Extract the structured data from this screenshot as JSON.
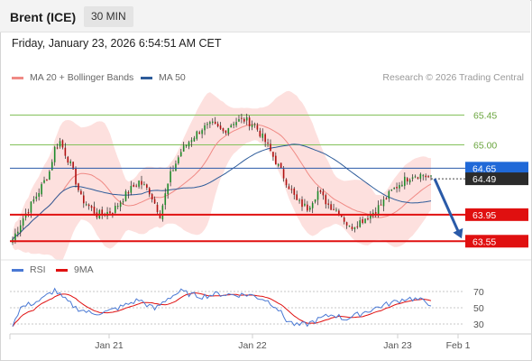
{
  "header": {
    "instrument": "Brent (ICE)",
    "timeframe": "30 MIN"
  },
  "timestamp": "Friday, January 23, 2026 6:54:51 AM CET",
  "legend": {
    "items": [
      {
        "label": "MA 20 + Bollinger Bands",
        "color": "#f08a85"
      },
      {
        "label": "MA 50",
        "color": "#2e5c9a"
      }
    ],
    "credit": "Research © 2026 Trading Central"
  },
  "indicator_legend": {
    "items": [
      {
        "label": "RSI",
        "color": "#4a79d4"
      },
      {
        "label": "9MA",
        "color": "#e01010"
      }
    ]
  },
  "colors": {
    "resistance": "#84c15a",
    "support": "#e01010",
    "current_line": "#2a5aa8",
    "current_badge": "#2069d8",
    "last_badge": "#2b2b2b",
    "band_fill": "#fde0de",
    "arrow": "#2a5aa8",
    "candle": "#1f8a2a",
    "candle_down": "#b01010"
  },
  "chart_data": [
    {
      "type": "candlestick",
      "title": "Brent (ICE) 30 MIN",
      "x_ticks": [
        "Jan 21",
        "Jan 22",
        "Jan 23",
        "Feb 1"
      ],
      "ylim": [
        63.35,
        65.85
      ],
      "price_labels": [
        "65.45",
        "65.00",
        "64.65",
        "64.49",
        "63.95",
        "63.55"
      ],
      "resistance_levels": [
        65.45,
        65.0
      ],
      "support_levels": [
        63.95,
        63.55
      ],
      "current_price": 64.65,
      "last_price": 64.49,
      "forecast_target": 63.55,
      "series": [
        {
          "name": "MA 20 + Bollinger Bands"
        },
        {
          "name": "MA 50"
        }
      ],
      "anchors": [
        [
          0,
          63.58
        ],
        [
          4,
          63.9
        ],
        [
          10,
          64.3
        ],
        [
          14,
          64.6
        ],
        [
          16,
          64.95
        ],
        [
          18,
          65.05
        ],
        [
          22,
          64.7
        ],
        [
          26,
          64.2
        ],
        [
          32,
          63.95
        ],
        [
          38,
          64.0
        ],
        [
          44,
          64.3
        ],
        [
          48,
          64.45
        ],
        [
          52,
          64.3
        ],
        [
          56,
          63.95
        ],
        [
          60,
          64.55
        ],
        [
          64,
          64.9
        ],
        [
          68,
          65.1
        ],
        [
          72,
          65.25
        ],
        [
          76,
          65.3
        ],
        [
          80,
          65.2
        ],
        [
          84,
          65.35
        ],
        [
          88,
          65.38
        ],
        [
          92,
          65.3
        ],
        [
          96,
          65.05
        ],
        [
          100,
          64.75
        ],
        [
          104,
          64.45
        ],
        [
          108,
          64.15
        ],
        [
          112,
          64.05
        ],
        [
          116,
          64.3
        ],
        [
          120,
          64.1
        ],
        [
          124,
          64.0
        ],
        [
          128,
          63.75
        ],
        [
          132,
          63.85
        ],
        [
          136,
          63.95
        ],
        [
          140,
          64.1
        ],
        [
          144,
          64.3
        ],
        [
          148,
          64.45
        ],
        [
          152,
          64.55
        ],
        [
          156,
          64.55
        ],
        [
          159,
          64.49
        ]
      ]
    },
    {
      "type": "line",
      "title": "RSI",
      "ylim": [
        20,
        80
      ],
      "y_ticks": [
        "70",
        "50",
        "30"
      ],
      "series": [
        {
          "name": "RSI"
        },
        {
          "name": "9MA"
        }
      ],
      "rsi_anchors": [
        [
          0,
          30
        ],
        [
          3,
          50
        ],
        [
          7,
          55
        ],
        [
          11,
          60
        ],
        [
          16,
          72
        ],
        [
          19,
          62
        ],
        [
          24,
          50
        ],
        [
          30,
          43
        ],
        [
          36,
          45
        ],
        [
          42,
          52
        ],
        [
          48,
          60
        ],
        [
          54,
          48
        ],
        [
          59,
          62
        ],
        [
          64,
          70
        ],
        [
          68,
          66
        ],
        [
          72,
          64
        ],
        [
          78,
          67
        ],
        [
          84,
          66
        ],
        [
          90,
          66
        ],
        [
          96,
          60
        ],
        [
          100,
          52
        ],
        [
          104,
          35
        ],
        [
          108,
          28
        ],
        [
          112,
          30
        ],
        [
          118,
          38
        ],
        [
          122,
          42
        ],
        [
          126,
          36
        ],
        [
          130,
          40
        ],
        [
          134,
          45
        ],
        [
          140,
          52
        ],
        [
          146,
          58
        ],
        [
          150,
          62
        ],
        [
          154,
          60
        ],
        [
          159,
          55
        ]
      ]
    }
  ]
}
